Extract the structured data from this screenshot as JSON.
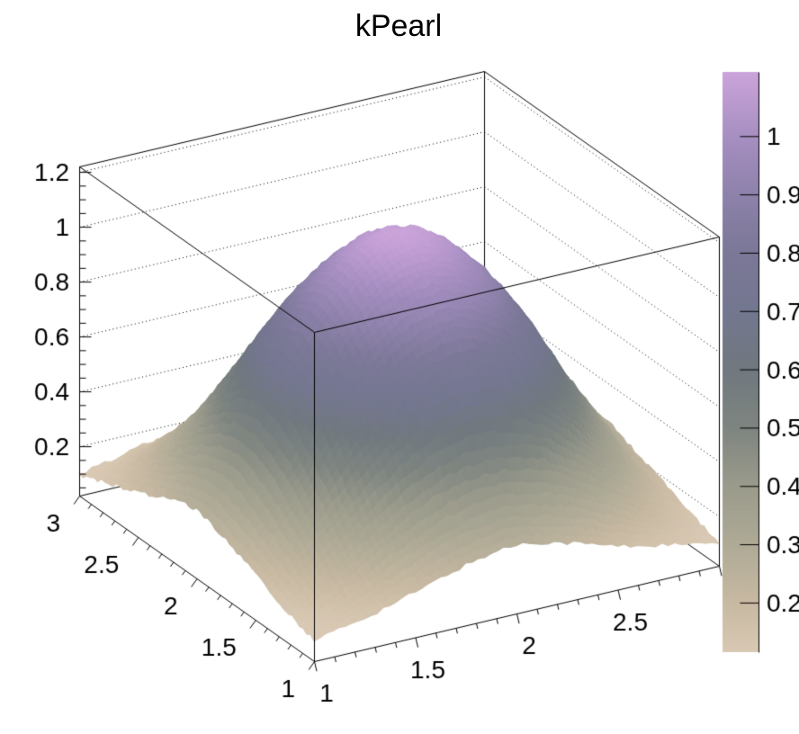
{
  "title": "kPearl",
  "chart_data": {
    "type": "heatmap",
    "plot_style": "3d-surface",
    "title": "kPearl",
    "xlabel": "",
    "ylabel": "",
    "zlabel": "",
    "x_range": [
      1,
      3
    ],
    "y_range": [
      1,
      3
    ],
    "z_axis_range": [
      0.02,
      1.22
    ],
    "x_ticks": {
      "values": [
        1,
        1.5,
        2,
        2.5,
        3
      ],
      "labels": [
        "1",
        "1.5",
        "2",
        "2.5",
        "3"
      ]
    },
    "y_ticks": {
      "values": [
        1,
        1.5,
        2,
        2.5,
        3
      ],
      "labels": [
        "1",
        "1.5",
        "2",
        "2.5",
        "3"
      ]
    },
    "z_ticks": {
      "values": [
        0.2,
        0.4,
        0.6,
        0.8,
        1.0,
        1.2
      ],
      "labels": [
        "0.2",
        "0.4",
        "0.6",
        "0.8",
        "1",
        "1.2"
      ]
    },
    "minor_step_xy": 0.1,
    "minor_step_z": 0.05,
    "grid_x": [
      1,
      1.25,
      1.5,
      1.75,
      2,
      2.25,
      2.5,
      2.75,
      3
    ],
    "grid_y": [
      1,
      1.25,
      1.5,
      1.75,
      2,
      2.25,
      2.5,
      2.75,
      3
    ],
    "z_values": [
      [
        0.1,
        0.135,
        0.185,
        0.24,
        0.27,
        0.235,
        0.18,
        0.14,
        0.105
      ],
      [
        0.135,
        0.24,
        0.365,
        0.465,
        0.5,
        0.465,
        0.36,
        0.235,
        0.14
      ],
      [
        0.19,
        0.36,
        0.585,
        0.755,
        0.82,
        0.755,
        0.58,
        0.355,
        0.185
      ],
      [
        0.235,
        0.47,
        0.76,
        0.95,
        1.02,
        0.95,
        0.755,
        0.465,
        0.23
      ],
      [
        0.27,
        0.52,
        0.83,
        1.03,
        1.11,
        1.03,
        0.82,
        0.51,
        0.265
      ],
      [
        0.235,
        0.465,
        0.755,
        0.945,
        1.025,
        0.945,
        0.755,
        0.46,
        0.235
      ],
      [
        0.185,
        0.355,
        0.58,
        0.75,
        0.815,
        0.75,
        0.585,
        0.35,
        0.19
      ],
      [
        0.14,
        0.235,
        0.36,
        0.46,
        0.495,
        0.46,
        0.365,
        0.23,
        0.14
      ],
      [
        0.1,
        0.14,
        0.18,
        0.235,
        0.27,
        0.24,
        0.185,
        0.135,
        0.105
      ]
    ],
    "f_range": [
      0.115,
      1.11
    ],
    "palette": {
      "name": "kPearl",
      "stops": [
        {
          "t": 0.0,
          "color": "#d9c9b4"
        },
        {
          "t": 0.085,
          "color": "#c8b9a2"
        },
        {
          "t": 0.186,
          "color": "#aeaa96"
        },
        {
          "t": 0.286,
          "color": "#9b9b8c"
        },
        {
          "t": 0.387,
          "color": "#7e8580"
        },
        {
          "t": 0.487,
          "color": "#71787f"
        },
        {
          "t": 0.588,
          "color": "#747790"
        },
        {
          "t": 0.688,
          "color": "#7b7897"
        },
        {
          "t": 0.789,
          "color": "#8e82ab"
        },
        {
          "t": 0.889,
          "color": "#a78fc2"
        },
        {
          "t": 1.0,
          "color": "#cba4da"
        }
      ]
    },
    "colorbar": {
      "tick_values": [
        0.2,
        0.3,
        0.4,
        0.5,
        0.6,
        0.7,
        0.8,
        0.9,
        1.0
      ],
      "tick_labels": [
        "0.2",
        "0.3",
        "0.4",
        "0.5",
        "0.6",
        "0.7",
        "0.8",
        "0.9",
        "1"
      ]
    },
    "line_color": "#000000",
    "background_color": "#ffffff",
    "grid_style": "dotted-z-levels-on-back-walls",
    "legend_position": "right-colorbar"
  }
}
